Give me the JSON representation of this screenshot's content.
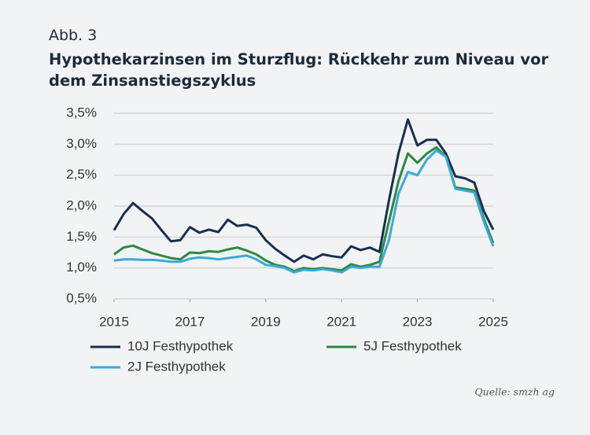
{
  "figure_label": "Abb. 3",
  "chart_data": {
    "type": "line",
    "title": "Hypothekarzinsen im Sturzflug: Rückkehr zum Niveau vor dem Zinsanstiegszyklus",
    "x": [
      2015.0,
      2015.25,
      2015.5,
      2015.75,
      2016.0,
      2016.25,
      2016.5,
      2016.75,
      2017.0,
      2017.25,
      2017.5,
      2017.75,
      2018.0,
      2018.25,
      2018.5,
      2018.75,
      2019.0,
      2019.25,
      2019.5,
      2019.75,
      2020.0,
      2020.25,
      2020.5,
      2020.75,
      2021.0,
      2021.25,
      2021.5,
      2021.75,
      2022.0,
      2022.25,
      2022.5,
      2022.75,
      2023.0,
      2023.25,
      2023.5,
      2023.75,
      2024.0,
      2024.25,
      2024.5,
      2024.75,
      2025.0
    ],
    "series": [
      {
        "name": "10J Festhypothek",
        "color": "#172f4f",
        "values": [
          1.61,
          1.87,
          2.05,
          1.92,
          1.8,
          1.61,
          1.43,
          1.45,
          1.66,
          1.57,
          1.62,
          1.58,
          1.78,
          1.68,
          1.7,
          1.65,
          1.45,
          1.31,
          1.2,
          1.1,
          1.2,
          1.14,
          1.22,
          1.19,
          1.17,
          1.35,
          1.29,
          1.33,
          1.26,
          2.09,
          2.85,
          3.4,
          2.98,
          3.07,
          3.07,
          2.85,
          2.48,
          2.45,
          2.38,
          1.92,
          1.62
        ]
      },
      {
        "name": "5J Festhypothek",
        "color": "#2b8a3e",
        "values": [
          1.22,
          1.33,
          1.36,
          1.3,
          1.24,
          1.2,
          1.16,
          1.14,
          1.25,
          1.24,
          1.27,
          1.26,
          1.3,
          1.33,
          1.28,
          1.22,
          1.12,
          1.05,
          1.02,
          0.95,
          1.0,
          0.98,
          1.0,
          0.98,
          0.96,
          1.06,
          1.02,
          1.05,
          1.1,
          1.75,
          2.4,
          2.85,
          2.7,
          2.85,
          2.95,
          2.8,
          2.3,
          2.28,
          2.25,
          1.8,
          1.4
        ]
      },
      {
        "name": "2J Festhypothek",
        "color": "#3aa9dd",
        "values": [
          1.12,
          1.14,
          1.14,
          1.13,
          1.13,
          1.12,
          1.1,
          1.1,
          1.15,
          1.17,
          1.16,
          1.14,
          1.16,
          1.18,
          1.2,
          1.14,
          1.05,
          1.03,
          1.0,
          0.93,
          0.97,
          0.96,
          0.98,
          0.96,
          0.93,
          1.02,
          1.0,
          1.02,
          1.02,
          1.45,
          2.2,
          2.55,
          2.5,
          2.75,
          2.9,
          2.8,
          2.28,
          2.25,
          2.22,
          1.75,
          1.35
        ]
      }
    ],
    "xlim": [
      2015,
      2025
    ],
    "xticks": [
      2015,
      2017,
      2019,
      2021,
      2023,
      2025
    ],
    "ylim": [
      0.5,
      3.5
    ],
    "yticks": [
      {
        "value": 0.5,
        "label": "0,5%"
      },
      {
        "value": 1.0,
        "label": "1,0%"
      },
      {
        "value": 1.5,
        "label": "1,5%"
      },
      {
        "value": 2.0,
        "label": "2,0%"
      },
      {
        "value": 2.5,
        "label": "2,5%"
      },
      {
        "value": 3.0,
        "label": "3,0%"
      },
      {
        "value": 3.5,
        "label": "3,5%"
      }
    ],
    "grid": true,
    "source": "Quelle: smzh ag"
  }
}
